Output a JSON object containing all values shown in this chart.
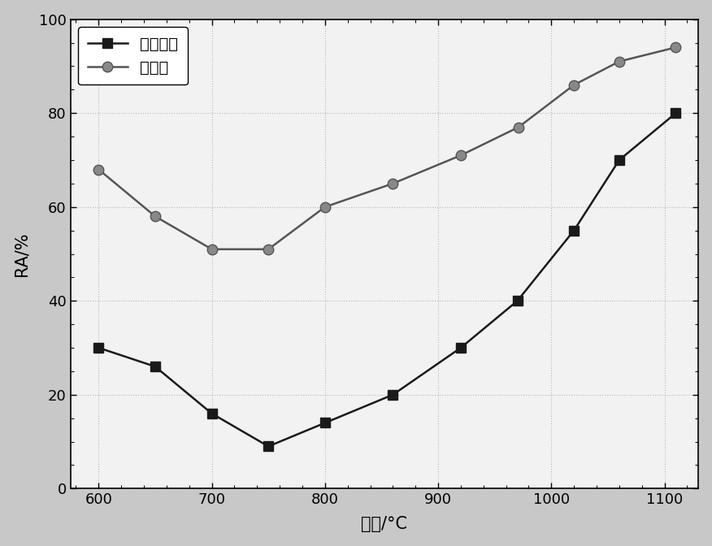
{
  "x_conventional": [
    600,
    650,
    700,
    750,
    800,
    860,
    920,
    970,
    1020,
    1060,
    1110
  ],
  "y_conventional": [
    30,
    26,
    16,
    9,
    14,
    20,
    30,
    40,
    55,
    70,
    80
  ],
  "x_new": [
    600,
    650,
    700,
    750,
    800,
    860,
    920,
    971,
    1020,
    1060,
    1110
  ],
  "y_new": [
    68,
    58,
    51,
    51,
    60,
    65,
    71,
    77,
    86,
    91,
    94
  ],
  "xlabel": "温度/°C",
  "ylabel": "RA/%",
  "legend_conventional": "常规工艺",
  "legend_new": "本工艺",
  "xlim": [
    575,
    1130
  ],
  "ylim": [
    0,
    100
  ],
  "xticks": [
    600,
    700,
    800,
    900,
    1000,
    1100
  ],
  "yticks": [
    0,
    20,
    40,
    60,
    80,
    100
  ],
  "color_conventional": "#1a1a1a",
  "color_new": "#555555",
  "marker_fill_new": "#888888",
  "background_color": "#f0f0f0",
  "plot_bg_color": "#f0f0f0",
  "line_width": 1.8,
  "marker_size": 9,
  "font_size_label": 15,
  "font_size_tick": 13,
  "font_size_legend": 14
}
